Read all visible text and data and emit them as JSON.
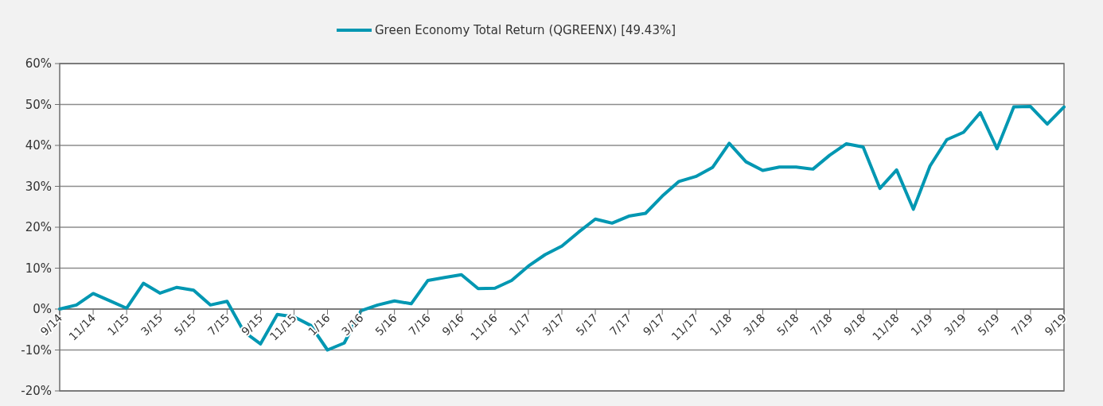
{
  "chart_data": {
    "type": "line",
    "categories": [
      "9/14",
      null,
      "11/14",
      null,
      "1/15",
      null,
      "3/15",
      null,
      "5/15",
      null,
      "7/15",
      null,
      "9/15",
      null,
      "11/15",
      null,
      "1/16",
      null,
      "3/16",
      null,
      "5/16",
      null,
      "7/16",
      null,
      "9/16",
      null,
      "11/16",
      null,
      "1/17",
      null,
      "3/17",
      null,
      "5/17",
      null,
      "7/17",
      null,
      "9/17",
      null,
      "11/17",
      null,
      "1/18",
      null,
      "3/18",
      null,
      "5/18",
      null,
      "7/18",
      null,
      "9/18",
      null,
      "11/18",
      null,
      "1/19",
      null,
      "3/19",
      null,
      "5/19",
      null,
      "7/19",
      null,
      "9/19"
    ],
    "series": [
      {
        "name": "Green Economy Total Return (QGREENX) [49.43%]",
        "color": "#0097b2",
        "values": [
          0,
          1,
          3.8,
          2,
          0.2,
          6.3,
          3.9,
          5.3,
          4.6,
          1,
          1.9,
          -5.5,
          -8.5,
          -1.3,
          -1.9,
          -4,
          -10,
          -8.3,
          -0.4,
          1,
          2,
          1.3,
          7,
          7.7,
          8.4,
          5,
          5.1,
          7,
          10.5,
          13.3,
          15.4,
          18.8,
          22,
          21,
          22.7,
          23.4,
          27.6,
          31.2,
          32.4,
          34.6,
          40.5,
          36,
          33.9,
          34.7,
          34.7,
          34.2,
          37.6,
          40.4,
          39.6,
          29.5,
          34,
          24.4,
          35,
          41.4,
          43.2,
          48,
          39.2,
          49.4,
          49.5,
          45.2,
          49.4
        ]
      }
    ],
    "ylim": [
      -20,
      60
    ],
    "yticks": [
      {
        "value": -20,
        "label": "-20%"
      },
      {
        "value": -10,
        "label": "-10%"
      },
      {
        "value": 0,
        "label": "0%"
      },
      {
        "value": 10,
        "label": "10%"
      },
      {
        "value": 20,
        "label": "20%"
      },
      {
        "value": 30,
        "label": "30%"
      },
      {
        "value": 40,
        "label": "40%"
      },
      {
        "value": 50,
        "label": "50%"
      },
      {
        "value": 60,
        "label": "60%"
      }
    ],
    "grid": "y",
    "legend": "top",
    "marker": "none",
    "line_style": "solid"
  }
}
